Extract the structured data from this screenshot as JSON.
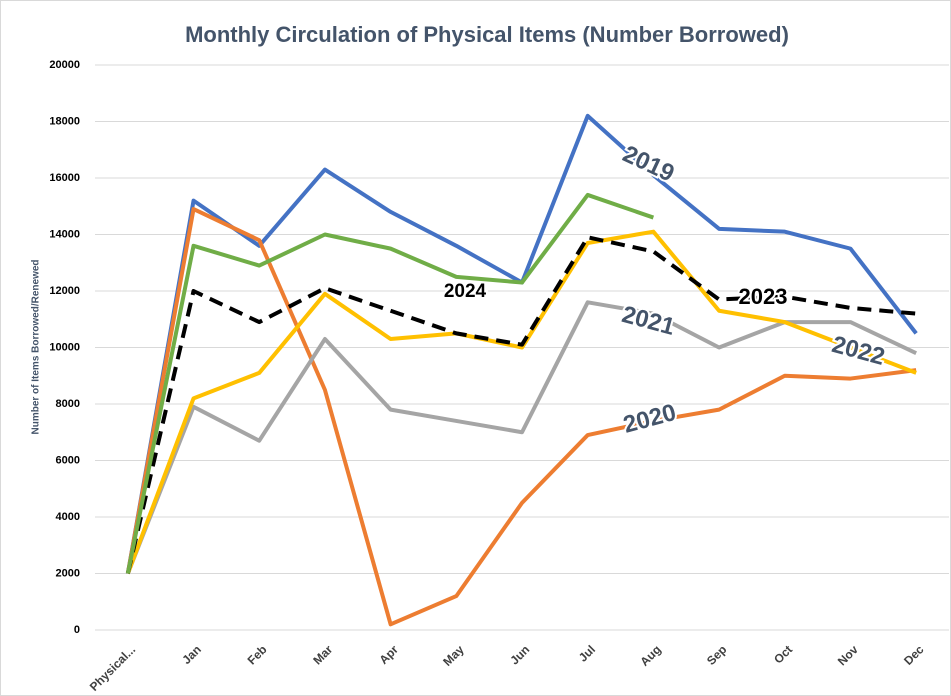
{
  "chart_data": {
    "type": "line",
    "title": "Monthly Circulation of Physical Items (Number Borrowed)",
    "y_label": "Number of Items Borrowed/Renewed",
    "categories": [
      "Physical...",
      "Jan",
      "Feb",
      "Mar",
      "Apr",
      "May",
      "Jun",
      "Jul",
      "Aug",
      "Sep",
      "Oct",
      "Nov",
      "Dec"
    ],
    "ylim": [
      0,
      20000
    ],
    "yticks": [
      0,
      2000,
      4000,
      6000,
      8000,
      10000,
      12000,
      14000,
      16000,
      18000,
      20000
    ],
    "grid": true,
    "series": [
      {
        "name": "2019",
        "color": "#4472c4",
        "values": [
          2000,
          15200,
          13600,
          16300,
          14800,
          13600,
          12300,
          18200,
          16100,
          14200,
          14100,
          13500,
          10500
        ]
      },
      {
        "name": "2020",
        "color": "#ed7d31",
        "values": [
          2000,
          14900,
          13800,
          8500,
          200,
          1200,
          4500,
          6900,
          7400,
          7800,
          9000,
          8900,
          9200
        ]
      },
      {
        "name": "2021",
        "color": "#a5a5a5",
        "values": [
          2000,
          7900,
          6700,
          10300,
          7800,
          7400,
          7000,
          11600,
          11200,
          10000,
          10900,
          10900,
          9800
        ]
      },
      {
        "name": "2022",
        "color": "#ffc000",
        "values": [
          2000,
          8200,
          9100,
          11900,
          10300,
          10500,
          10000,
          13700,
          14100,
          11300,
          10900,
          10000,
          9100
        ]
      },
      {
        "name": "2023",
        "color": "#000000",
        "dashed": true,
        "values": [
          2000,
          12000,
          10900,
          12100,
          11300,
          10500,
          10100,
          13900,
          13400,
          11700,
          11800,
          11400,
          11200
        ]
      },
      {
        "name": "2024",
        "color": "#70ad47",
        "values": [
          2000,
          13600,
          12900,
          14000,
          13500,
          12500,
          12300,
          15400,
          14600,
          null,
          null,
          null,
          null
        ]
      }
    ]
  }
}
